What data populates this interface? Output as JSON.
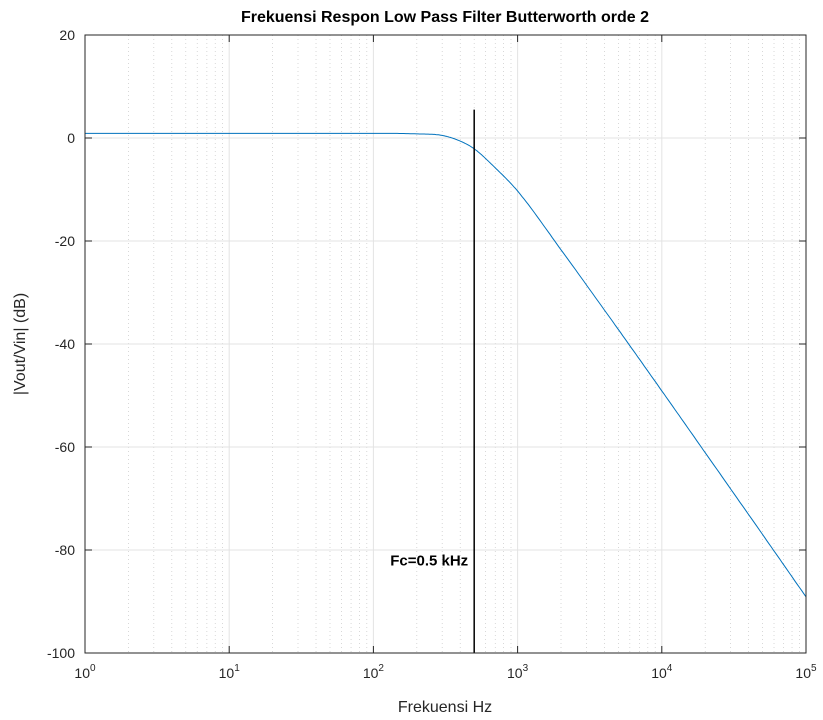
{
  "chart_data": {
    "type": "line",
    "title": "Frekuensi Respon Low Pass Filter Butterworth orde 2",
    "xlabel": "Frekuensi Hz",
    "ylabel": "|Vout/Vin| (dB)",
    "x_scale": "log",
    "xlim": [
      1,
      100000
    ],
    "ylim": [
      -100,
      20
    ],
    "x_ticks": [
      {
        "base": "10",
        "exp": "0",
        "value": 1
      },
      {
        "base": "10",
        "exp": "1",
        "value": 10
      },
      {
        "base": "10",
        "exp": "2",
        "value": 100
      },
      {
        "base": "10",
        "exp": "3",
        "value": 1000
      },
      {
        "base": "10",
        "exp": "4",
        "value": 10000
      },
      {
        "base": "10",
        "exp": "5",
        "value": 100000
      }
    ],
    "y_ticks": [
      "20",
      "0",
      "-20",
      "-40",
      "-60",
      "-80",
      "-100"
    ],
    "grid": true,
    "minor_grid": true,
    "series": [
      {
        "color": "#0072BD",
        "x": [
          1,
          10,
          100,
          200,
          300,
          400,
          500,
          700,
          1000,
          2000,
          5000,
          10000,
          20000,
          50000,
          100000
        ],
        "y": [
          0.9,
          0.9,
          0.9,
          0.8,
          0.5,
          -0.6,
          -2.1,
          -5.8,
          -10.3,
          -21.7,
          -37.2,
          -49.1,
          -61.1,
          -77.0,
          -89.1
        ]
      }
    ],
    "vline": {
      "x": 500,
      "y_top": 5.5,
      "y_bottom": -100,
      "color": "#000000"
    },
    "annotation": {
      "text": "Fc=0.5 kHz",
      "x": 500,
      "y": -82
    }
  }
}
